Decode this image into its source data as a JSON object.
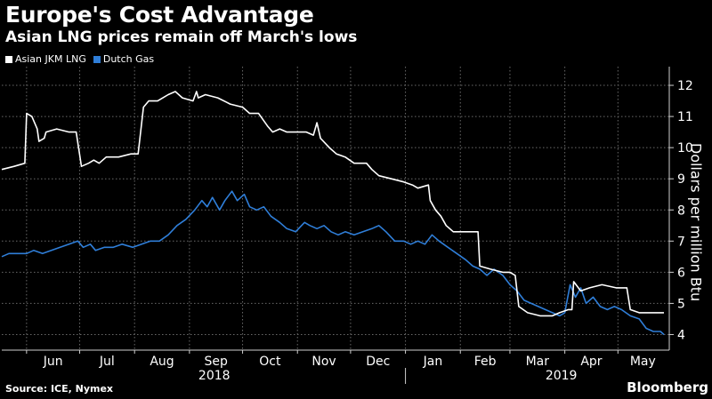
{
  "header": {
    "title": "Europe's Cost Advantage",
    "subtitle": "Asian LNG prices remain off March's lows"
  },
  "footer": {
    "source": "Source: ICE, Nymex",
    "brand": "Bloomberg"
  },
  "chart_data": {
    "type": "line",
    "ylabel": "Dollars per million Btu",
    "ylim": [
      3.5,
      12.6
    ],
    "yticks": [
      4,
      5,
      6,
      7,
      8,
      9,
      10,
      11,
      12
    ],
    "xlim": [
      "2018-05-18",
      "2019-05-30"
    ],
    "month_ticks": [
      {
        "label": "Jun",
        "date": "2018-06-01"
      },
      {
        "label": "Jul",
        "date": "2018-07-01"
      },
      {
        "label": "Aug",
        "date": "2018-08-01"
      },
      {
        "label": "Sep",
        "date": "2018-09-01"
      },
      {
        "label": "Oct",
        "date": "2018-10-01"
      },
      {
        "label": "Nov",
        "date": "2018-11-01"
      },
      {
        "label": "Dec",
        "date": "2018-12-01"
      },
      {
        "label": "Jan",
        "date": "2019-01-01"
      },
      {
        "label": "Feb",
        "date": "2019-02-01"
      },
      {
        "label": "Mar",
        "date": "2019-03-01"
      },
      {
        "label": "Apr",
        "date": "2019-04-01"
      },
      {
        "label": "May",
        "date": "2019-05-01"
      }
    ],
    "year_labels": [
      {
        "label": "2018",
        "date": "2018-09-15"
      },
      {
        "label": "2019",
        "date": "2019-03-30"
      }
    ],
    "year_divider": "2019-01-01",
    "grid": true,
    "legend_position": "top-left",
    "series": [
      {
        "name": "Asian JKM LNG",
        "color": "#ffffff",
        "points": [
          [
            "2018-05-18",
            9.3
          ],
          [
            "2018-05-25",
            9.4
          ],
          [
            "2018-05-31",
            9.5
          ],
          [
            "2018-06-01",
            11.1
          ],
          [
            "2018-06-04",
            11.0
          ],
          [
            "2018-06-07",
            10.6
          ],
          [
            "2018-06-08",
            10.2
          ],
          [
            "2018-06-11",
            10.3
          ],
          [
            "2018-06-12",
            10.5
          ],
          [
            "2018-06-18",
            10.6
          ],
          [
            "2018-06-25",
            10.5
          ],
          [
            "2018-06-29",
            10.5
          ],
          [
            "2018-07-02",
            9.4
          ],
          [
            "2018-07-06",
            9.5
          ],
          [
            "2018-07-09",
            9.6
          ],
          [
            "2018-07-12",
            9.5
          ],
          [
            "2018-07-16",
            9.7
          ],
          [
            "2018-07-23",
            9.7
          ],
          [
            "2018-07-30",
            9.8
          ],
          [
            "2018-08-03",
            9.8
          ],
          [
            "2018-08-06",
            11.3
          ],
          [
            "2018-08-09",
            11.5
          ],
          [
            "2018-08-14",
            11.5
          ],
          [
            "2018-08-17",
            11.6
          ],
          [
            "2018-08-20",
            11.7
          ],
          [
            "2018-08-24",
            11.8
          ],
          [
            "2018-08-28",
            11.6
          ],
          [
            "2018-09-03",
            11.5
          ],
          [
            "2018-09-05",
            11.8
          ],
          [
            "2018-09-06",
            11.6
          ],
          [
            "2018-09-10",
            11.7
          ],
          [
            "2018-09-17",
            11.6
          ],
          [
            "2018-09-24",
            11.4
          ],
          [
            "2018-10-01",
            11.3
          ],
          [
            "2018-10-05",
            11.1
          ],
          [
            "2018-10-10",
            11.1
          ],
          [
            "2018-10-15",
            10.7
          ],
          [
            "2018-10-18",
            10.5
          ],
          [
            "2018-10-22",
            10.6
          ],
          [
            "2018-10-26",
            10.5
          ],
          [
            "2018-10-31",
            10.5
          ],
          [
            "2018-11-06",
            10.5
          ],
          [
            "2018-11-10",
            10.4
          ],
          [
            "2018-11-12",
            10.8
          ],
          [
            "2018-11-14",
            10.3
          ],
          [
            "2018-11-19",
            10.0
          ],
          [
            "2018-11-23",
            9.8
          ],
          [
            "2018-11-28",
            9.7
          ],
          [
            "2018-12-03",
            9.5
          ],
          [
            "2018-12-10",
            9.5
          ],
          [
            "2018-12-13",
            9.3
          ],
          [
            "2018-12-17",
            9.1
          ],
          [
            "2018-12-24",
            9.0
          ],
          [
            "2018-12-31",
            8.9
          ],
          [
            "2019-01-05",
            8.8
          ],
          [
            "2019-01-08",
            8.7
          ],
          [
            "2019-01-14",
            8.8
          ],
          [
            "2019-01-15",
            8.3
          ],
          [
            "2019-01-18",
            8.0
          ],
          [
            "2019-01-21",
            7.8
          ],
          [
            "2019-01-24",
            7.5
          ],
          [
            "2019-01-28",
            7.3
          ],
          [
            "2019-02-04",
            7.3
          ],
          [
            "2019-02-11",
            7.3
          ],
          [
            "2019-02-12",
            6.2
          ],
          [
            "2019-02-18",
            6.1
          ],
          [
            "2019-02-25",
            6.0
          ],
          [
            "2019-03-01",
            6.0
          ],
          [
            "2019-03-04",
            5.9
          ],
          [
            "2019-03-06",
            4.9
          ],
          [
            "2019-03-11",
            4.7
          ],
          [
            "2019-03-18",
            4.6
          ],
          [
            "2019-03-25",
            4.6
          ],
          [
            "2019-03-29",
            4.7
          ],
          [
            "2019-04-03",
            4.8
          ],
          [
            "2019-04-05",
            4.8
          ],
          [
            "2019-04-06",
            5.7
          ],
          [
            "2019-04-10",
            5.4
          ],
          [
            "2019-04-15",
            5.5
          ],
          [
            "2019-04-22",
            5.6
          ],
          [
            "2019-04-30",
            5.5
          ],
          [
            "2019-05-06",
            5.5
          ],
          [
            "2019-05-08",
            4.8
          ],
          [
            "2019-05-13",
            4.7
          ],
          [
            "2019-05-20",
            4.7
          ],
          [
            "2019-05-27",
            4.7
          ]
        ]
      },
      {
        "name": "Dutch Gas",
        "color": "#2f7ed8",
        "points": [
          [
            "2018-05-18",
            6.5
          ],
          [
            "2018-05-22",
            6.6
          ],
          [
            "2018-05-27",
            6.6
          ],
          [
            "2018-06-01",
            6.6
          ],
          [
            "2018-06-05",
            6.7
          ],
          [
            "2018-06-10",
            6.6
          ],
          [
            "2018-06-15",
            6.7
          ],
          [
            "2018-06-20",
            6.8
          ],
          [
            "2018-06-25",
            6.9
          ],
          [
            "2018-06-30",
            7.0
          ],
          [
            "2018-07-03",
            6.8
          ],
          [
            "2018-07-07",
            6.9
          ],
          [
            "2018-07-10",
            6.7
          ],
          [
            "2018-07-15",
            6.8
          ],
          [
            "2018-07-20",
            6.8
          ],
          [
            "2018-07-25",
            6.9
          ],
          [
            "2018-07-31",
            6.8
          ],
          [
            "2018-08-05",
            6.9
          ],
          [
            "2018-08-10",
            7.0
          ],
          [
            "2018-08-15",
            7.0
          ],
          [
            "2018-08-20",
            7.2
          ],
          [
            "2018-08-25",
            7.5
          ],
          [
            "2018-08-30",
            7.7
          ],
          [
            "2018-09-04",
            8.0
          ],
          [
            "2018-09-08",
            8.3
          ],
          [
            "2018-09-11",
            8.1
          ],
          [
            "2018-09-14",
            8.4
          ],
          [
            "2018-09-18",
            8.0
          ],
          [
            "2018-09-21",
            8.3
          ],
          [
            "2018-09-25",
            8.6
          ],
          [
            "2018-09-28",
            8.3
          ],
          [
            "2018-10-02",
            8.5
          ],
          [
            "2018-10-05",
            8.1
          ],
          [
            "2018-10-09",
            8.0
          ],
          [
            "2018-10-13",
            8.1
          ],
          [
            "2018-10-17",
            7.8
          ],
          [
            "2018-10-22",
            7.6
          ],
          [
            "2018-10-26",
            7.4
          ],
          [
            "2018-10-31",
            7.3
          ],
          [
            "2018-11-05",
            7.6
          ],
          [
            "2018-11-08",
            7.5
          ],
          [
            "2018-11-12",
            7.4
          ],
          [
            "2018-11-16",
            7.5
          ],
          [
            "2018-11-20",
            7.3
          ],
          [
            "2018-11-24",
            7.2
          ],
          [
            "2018-11-28",
            7.3
          ],
          [
            "2018-12-03",
            7.2
          ],
          [
            "2018-12-08",
            7.3
          ],
          [
            "2018-12-13",
            7.4
          ],
          [
            "2018-12-17",
            7.5
          ],
          [
            "2018-12-21",
            7.3
          ],
          [
            "2018-12-26",
            7.0
          ],
          [
            "2018-12-31",
            7.0
          ],
          [
            "2019-01-04",
            6.9
          ],
          [
            "2019-01-08",
            7.0
          ],
          [
            "2019-01-12",
            6.9
          ],
          [
            "2019-01-16",
            7.2
          ],
          [
            "2019-01-20",
            7.0
          ],
          [
            "2019-01-25",
            6.8
          ],
          [
            "2019-01-30",
            6.6
          ],
          [
            "2019-02-04",
            6.4
          ],
          [
            "2019-02-08",
            6.2
          ],
          [
            "2019-02-12",
            6.1
          ],
          [
            "2019-02-16",
            5.9
          ],
          [
            "2019-02-20",
            6.1
          ],
          [
            "2019-02-25",
            5.9
          ],
          [
            "2019-03-01",
            5.6
          ],
          [
            "2019-03-05",
            5.4
          ],
          [
            "2019-03-09",
            5.1
          ],
          [
            "2019-03-13",
            5.0
          ],
          [
            "2019-03-17",
            4.9
          ],
          [
            "2019-03-21",
            4.8
          ],
          [
            "2019-03-25",
            4.7
          ],
          [
            "2019-03-29",
            4.6
          ],
          [
            "2019-04-01",
            4.7
          ],
          [
            "2019-04-04",
            5.6
          ],
          [
            "2019-04-07",
            5.2
          ],
          [
            "2019-04-10",
            5.5
          ],
          [
            "2019-04-13",
            5.0
          ],
          [
            "2019-04-17",
            5.2
          ],
          [
            "2019-04-21",
            4.9
          ],
          [
            "2019-04-25",
            4.8
          ],
          [
            "2019-04-29",
            4.9
          ],
          [
            "2019-05-03",
            4.8
          ],
          [
            "2019-05-08",
            4.6
          ],
          [
            "2019-05-13",
            4.5
          ],
          [
            "2019-05-17",
            4.2
          ],
          [
            "2019-05-21",
            4.1
          ],
          [
            "2019-05-25",
            4.1
          ],
          [
            "2019-05-27",
            4.0
          ]
        ]
      }
    ]
  }
}
